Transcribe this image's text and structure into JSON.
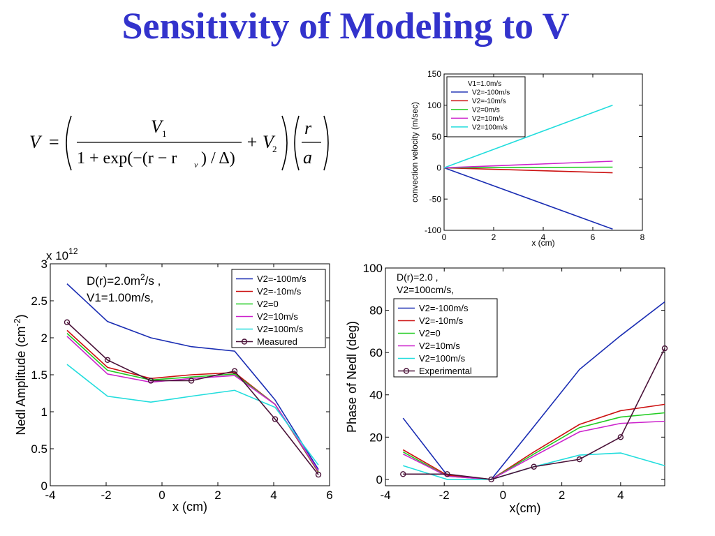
{
  "title": "Sensitivity of Modeling to V",
  "formula": {
    "lhs": "V",
    "eq": "=",
    "numerator": "V",
    "numerator_sub": "1",
    "den_one_plus": "1 + exp(−(r − r",
    "den_sub": "v",
    "den_rest": ") / Δ)",
    "plus_v": "+ V",
    "plus_sub": "2",
    "frac_top": "r",
    "frac_bottom": "a"
  },
  "chart_data": [
    {
      "type": "line",
      "xlabel": "x (cm)",
      "ylabel": "convection velocity (m/sec)",
      "xlim": [
        0,
        8
      ],
      "ylim": [
        -100,
        150
      ],
      "xticks": [
        0,
        2,
        4,
        6,
        8
      ],
      "yticks": [
        -100,
        -50,
        0,
        50,
        100,
        150
      ],
      "legend_title": "V1=1.0m/s",
      "legend_placement": "top-left",
      "grid": false,
      "series": [
        {
          "name": "V2=-100m/s",
          "color": "#1a2db3",
          "x": [
            0,
            6.8
          ],
          "y": [
            0,
            -98
          ]
        },
        {
          "name": "V2=-10m/s",
          "color": "#cc1111",
          "x": [
            0,
            6.8
          ],
          "y": [
            0,
            -8
          ]
        },
        {
          "name": "V2=0m/s",
          "color": "#22cc22",
          "x": [
            0,
            6.8
          ],
          "y": [
            0,
            1
          ]
        },
        {
          "name": "V2=10m/s",
          "color": "#cc22cc",
          "x": [
            0,
            6.8
          ],
          "y": [
            0,
            10.5
          ]
        },
        {
          "name": "V2=100m/s",
          "color": "#22dddd",
          "x": [
            0,
            6.8
          ],
          "y": [
            0,
            100
          ]
        }
      ]
    },
    {
      "type": "line",
      "xlabel": "x (cm)",
      "ylabel": "Nedl Amplitude (cm",
      "ylabel_sup": "-2",
      "ylabel_end": ")",
      "exponent_label": "x 10",
      "exponent_sup": "12",
      "xlim": [
        -4,
        6
      ],
      "ylim": [
        0,
        3
      ],
      "xticks": [
        -4,
        -2,
        0,
        2,
        4,
        6
      ],
      "yticks": [
        0,
        0.5,
        1,
        1.5,
        2,
        2.5,
        3
      ],
      "annotation_line1": "D(r)=2.0m",
      "annotation_line1_sup": "2",
      "annotation_line1_end": "/s ,",
      "annotation_line2": "V1=1.00m/s,",
      "legend_placement": "top-right",
      "grid": false,
      "series": [
        {
          "name": "V2=-100m/s",
          "color": "#1a2db3",
          "x": [
            -3.4,
            -1.95,
            -0.4,
            1.05,
            2.6,
            4.05,
            5.6
          ],
          "y": [
            2.73,
            2.22,
            2.0,
            1.88,
            1.82,
            1.16,
            0.22
          ],
          "marker": false
        },
        {
          "name": "V2=-10m/s",
          "color": "#cc1111",
          "x": [
            -3.4,
            -1.95,
            -0.4,
            1.05,
            2.6,
            4.05,
            5.6
          ],
          "y": [
            2.1,
            1.6,
            1.45,
            1.5,
            1.53,
            1.1,
            0.18
          ],
          "marker": false
        },
        {
          "name": "V2=0",
          "color": "#22cc22",
          "x": [
            -3.4,
            -1.95,
            -0.4,
            1.05,
            2.6,
            4.05,
            5.6
          ],
          "y": [
            2.06,
            1.56,
            1.43,
            1.47,
            1.51,
            1.1,
            0.19
          ],
          "marker": false
        },
        {
          "name": "V2=10m/s",
          "color": "#cc22cc",
          "x": [
            -3.4,
            -1.95,
            -0.4,
            1.05,
            2.6,
            4.05,
            5.6
          ],
          "y": [
            2.02,
            1.51,
            1.4,
            1.45,
            1.49,
            1.1,
            0.2
          ],
          "marker": false
        },
        {
          "name": "V2=100m/s",
          "color": "#22dddd",
          "x": [
            -3.4,
            -1.95,
            -0.4,
            1.05,
            2.6,
            4.05,
            5.6
          ],
          "y": [
            1.64,
            1.21,
            1.13,
            1.21,
            1.29,
            1.06,
            0.28
          ],
          "marker": false
        },
        {
          "name": "Measured",
          "color": "#4a1238",
          "x": [
            -3.4,
            -1.95,
            -0.4,
            1.05,
            2.6,
            4.05,
            5.6
          ],
          "y": [
            2.21,
            1.7,
            1.42,
            1.42,
            1.55,
            0.9,
            0.15
          ],
          "marker": true
        }
      ]
    },
    {
      "type": "line",
      "xlabel": "x(cm)",
      "ylabel": "Phase of Nedl (deg)",
      "xlim": [
        -4,
        5.5
      ],
      "ylim": [
        -3,
        100
      ],
      "xticks": [
        -4,
        -2,
        0,
        2,
        4
      ],
      "yticks": [
        0,
        20,
        40,
        60,
        80,
        100
      ],
      "annotation_line1": "D(r)=2.0 ,",
      "annotation_line2": "V2=100cm/s,",
      "legend_placement": "top-left",
      "grid": false,
      "series": [
        {
          "name": "V2=-100m/s",
          "color": "#1a2db3",
          "x": [
            -3.4,
            -1.9,
            -0.4,
            1.05,
            2.6,
            4.0,
            5.5
          ],
          "y": [
            29,
            2,
            0,
            25,
            52,
            68,
            84
          ],
          "marker": false
        },
        {
          "name": "V2=-10m/s",
          "color": "#cc1111",
          "x": [
            -3.4,
            -1.9,
            -0.4,
            1.05,
            2.6,
            4.0,
            5.5
          ],
          "y": [
            14,
            2,
            0,
            13,
            26,
            32.5,
            35.5
          ],
          "marker": false
        },
        {
          "name": "V2=0",
          "color": "#22cc22",
          "x": [
            -3.4,
            -1.9,
            -0.4,
            1.05,
            2.6,
            4.0,
            5.5
          ],
          "y": [
            13,
            1.5,
            0,
            12,
            24.5,
            29.5,
            31.5
          ],
          "marker": false
        },
        {
          "name": "V2=10m/s",
          "color": "#cc22cc",
          "x": [
            -3.4,
            -1.9,
            -0.4,
            1.05,
            2.6,
            4.0,
            5.5
          ],
          "y": [
            12,
            1.5,
            0,
            11,
            22.5,
            26.5,
            27.5
          ],
          "marker": false
        },
        {
          "name": "V2=100m/s",
          "color": "#22dddd",
          "x": [
            -3.4,
            -1.9,
            -0.4,
            1.05,
            2.6,
            4.0,
            5.5
          ],
          "y": [
            6.5,
            0,
            0,
            6,
            11.5,
            12.5,
            6.5
          ],
          "marker": false
        },
        {
          "name": "Experimental",
          "color": "#4a1238",
          "x": [
            -3.4,
            -1.9,
            -0.4,
            1.05,
            2.6,
            4.0,
            5.5
          ],
          "y": [
            2.5,
            2.5,
            0,
            6,
            9.5,
            20,
            62
          ],
          "marker": true
        }
      ]
    }
  ]
}
